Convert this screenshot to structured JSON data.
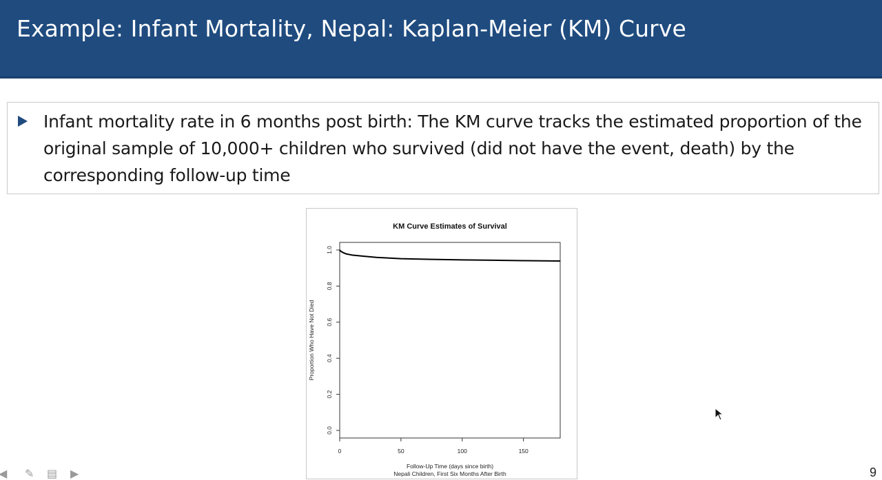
{
  "slide": {
    "title": "Example: Infant Mortality, Nepal: Kaplan-Meier (KM) Curve",
    "bullet": "Infant mortality rate in 6 months post birth: The KM curve tracks the estimated proportion of the original sample of 10,000+ children who survived (did not have the event, death) by the corresponding follow-up time",
    "page_number": "9",
    "colors": {
      "title_bar": "#1f4b7f",
      "bullet": "#1f4b7f"
    }
  },
  "nav_icons": [
    "back-arrow-icon",
    "pen-icon",
    "slides-icon",
    "forward-arrow-icon"
  ],
  "chart_data": {
    "type": "line",
    "title": "KM Curve Estimates of  Survival",
    "xlabel": "Follow-Up Time (days since birth)",
    "xlabel2": "Nepali Children, First Six Months After Birth",
    "ylabel": "Proportion Who Have Not Died",
    "xlim": [
      0,
      180
    ],
    "ylim": [
      0,
      1
    ],
    "x_ticks": [
      "0",
      "50",
      "100",
      "150"
    ],
    "y_ticks": [
      "0.0",
      "0.2",
      "0.4",
      "0.6",
      "0.8",
      "1.0"
    ],
    "grid": false,
    "series": [
      {
        "x": [
          0,
          1,
          3,
          5,
          10,
          20,
          30,
          50,
          75,
          100,
          125,
          150,
          180
        ],
        "y": [
          1.0,
          0.992,
          0.985,
          0.979,
          0.972,
          0.965,
          0.959,
          0.952,
          0.948,
          0.945,
          0.943,
          0.941,
          0.939
        ]
      }
    ]
  }
}
